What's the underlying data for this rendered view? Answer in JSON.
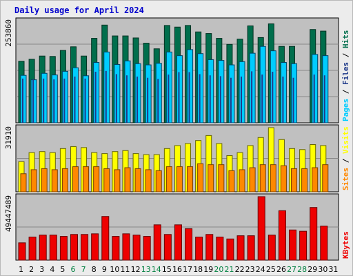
{
  "title": "Daily usage for April 2024",
  "colors": {
    "hits": "#006e4c",
    "files": "#1f3a8a",
    "pages": "#00ccff",
    "visits": "#ffff00",
    "sites": "#ff8800",
    "kbytes": "#ee0000",
    "weekend_label": "#008040",
    "weekday_label": "#000000"
  },
  "chart_data": [
    {
      "type": "bar",
      "panel": "top",
      "ymax_label": "253860",
      "ylim": [
        0,
        253860
      ],
      "legend": [
        "Pages",
        "Files",
        "Hits"
      ],
      "legend_colors": [
        "#00ccff",
        "#1f3a8a",
        "#006e4c"
      ],
      "categories": [
        "1",
        "2",
        "3",
        "4",
        "5",
        "6",
        "7",
        "8",
        "9",
        "10",
        "11",
        "12",
        "13",
        "14",
        "15",
        "16",
        "17",
        "18",
        "19",
        "20",
        "21",
        "22",
        "23",
        "24",
        "25",
        "26",
        "27",
        "28",
        "29",
        "30",
        "31"
      ],
      "weekend": [
        6,
        7,
        13,
        14,
        20,
        21,
        27,
        28
      ],
      "series": [
        {
          "name": "Hits",
          "values": [
            153000,
            158000,
            166000,
            165000,
            180000,
            189000,
            166000,
            210000,
            243000,
            216000,
            216000,
            211000,
            198000,
            184000,
            242000,
            238000,
            242000,
            226000,
            222000,
            210000,
            195000,
            208000,
            241000,
            212000,
            246000,
            190000,
            190000,
            0,
            232000,
            228000,
            0
          ]
        },
        {
          "name": "Files",
          "values": [
            110000,
            108000,
            110000,
            108000,
            110000,
            115000,
            110000,
            127000,
            129000,
            121000,
            118000,
            115000,
            112000,
            109000,
            120000,
            126000,
            126000,
            121000,
            118000,
            116000,
            112000,
            115000,
            128000,
            120000,
            127000,
            115000,
            112000,
            0,
            120000,
            118000,
            0
          ]
        },
        {
          "name": "Pages",
          "values": [
            118000,
            107000,
            123000,
            119000,
            128000,
            137000,
            117000,
            150000,
            176000,
            145000,
            154000,
            147000,
            144000,
            148000,
            176000,
            167000,
            182000,
            172000,
            157000,
            155000,
            144000,
            152000,
            173000,
            190000,
            179000,
            150000,
            147000,
            0,
            170000,
            167000,
            0
          ]
        }
      ]
    },
    {
      "type": "bar",
      "panel": "middle",
      "ymax_label": "31910",
      "ylim": [
        0,
        31910
      ],
      "legend": [
        "Sites",
        "Visits"
      ],
      "legend_colors": [
        "#ff8800",
        "#ffff00"
      ],
      "categories": [
        "1",
        "2",
        "3",
        "4",
        "5",
        "6",
        "7",
        "8",
        "9",
        "10",
        "11",
        "12",
        "13",
        "14",
        "15",
        "16",
        "17",
        "18",
        "19",
        "20",
        "21",
        "22",
        "23",
        "24",
        "25",
        "26",
        "27",
        "28",
        "29",
        "30",
        "31"
      ],
      "weekend": [
        6,
        7,
        13,
        14,
        20,
        21,
        27,
        28
      ],
      "series": [
        {
          "name": "Visits",
          "values": [
            15000,
            19500,
            20000,
            19500,
            21500,
            22500,
            22000,
            19500,
            19000,
            20000,
            20500,
            19000,
            18500,
            18500,
            21500,
            23000,
            24000,
            25500,
            28000,
            24000,
            18000,
            19500,
            23000,
            27000,
            31910,
            26000,
            21500,
            21000,
            23500,
            23000,
            0
          ]
        },
        {
          "name": "Sites",
          "values": [
            9000,
            11000,
            11500,
            11000,
            11500,
            12500,
            12500,
            12500,
            11500,
            11000,
            12000,
            11500,
            11000,
            10500,
            12500,
            12500,
            12500,
            14000,
            13500,
            13500,
            10500,
            11000,
            12000,
            13500,
            13500,
            13000,
            11500,
            11500,
            12000,
            13500,
            0
          ]
        }
      ]
    },
    {
      "type": "bar",
      "panel": "bottom",
      "ymax_label": "49447489",
      "ylim": [
        0,
        49447489
      ],
      "legend": [
        "KBytes"
      ],
      "legend_colors": [
        "#ee0000"
      ],
      "categories": [
        "1",
        "2",
        "3",
        "4",
        "5",
        "6",
        "7",
        "8",
        "9",
        "10",
        "11",
        "12",
        "13",
        "14",
        "15",
        "16",
        "17",
        "18",
        "19",
        "20",
        "21",
        "22",
        "23",
        "24",
        "25",
        "26",
        "27",
        "28",
        "29",
        "30",
        "31"
      ],
      "weekend": [
        6,
        7,
        13,
        14,
        20,
        21,
        27,
        28
      ],
      "series": [
        {
          "name": "KBytes",
          "values": [
            13500000,
            18000000,
            19500000,
            19500000,
            18500000,
            20000000,
            20000000,
            20500000,
            34000000,
            18500000,
            20500000,
            19500000,
            18500000,
            27500000,
            20000000,
            27500000,
            24500000,
            18000000,
            20000000,
            18000000,
            16500000,
            19000000,
            19000000,
            49447489,
            19500000,
            38500000,
            23500000,
            22500000,
            41000000,
            26500000,
            0
          ]
        }
      ]
    }
  ]
}
